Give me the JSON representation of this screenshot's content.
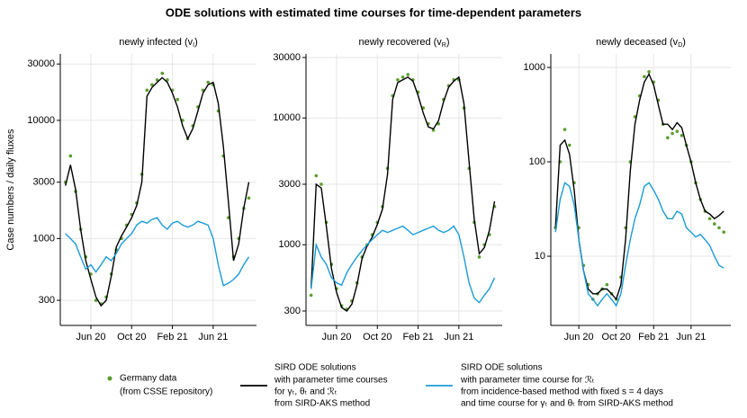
{
  "title": "ODE solutions with estimated time courses for time-dependent parameters",
  "y_label": "Case numbers / daily fluxes",
  "legend": [
    {
      "lines": [
        "Germany data",
        "(from CSSE repository)"
      ]
    },
    {
      "lines": [
        "SIRD ODE solutions",
        "with parameter time courses",
        "for γₜ, θₜ and ℛₜ",
        "from SIRD-AKS method"
      ]
    },
    {
      "lines": [
        "SIRD ODE solutions",
        "with parameter time course for ℛₜ",
        "from incidence-based method with fixed s = 4 days",
        "and time course for γₜ and θₜ from SIRD-AKS method"
      ]
    }
  ],
  "chart_data": [
    {
      "type": "line",
      "title_main": "newly infected (v",
      "title_sub": "I",
      "title_end": ")",
      "yscale": "log",
      "grid": true,
      "categories": [
        null,
        null,
        null,
        null,
        null,
        "Jun 20",
        null,
        null,
        null,
        null,
        null,
        null,
        null,
        "Oct 20",
        null,
        null,
        null,
        null,
        null,
        null,
        null,
        "Feb 21",
        null,
        null,
        null,
        null,
        null,
        null,
        null,
        "Jun 21",
        null,
        null,
        null,
        null,
        null,
        null,
        null
      ],
      "ylim": [
        184,
        36500
      ],
      "yticks": [
        300,
        1000,
        3000,
        10000,
        30000
      ],
      "series": [
        {
          "marker": "dot",
          "color": "#5a9e2e",
          "values": [
            3000,
            5000,
            2500,
            1200,
            700,
            500,
            300,
            280,
            320,
            500,
            800,
            1000,
            1300,
            1600,
            2000,
            3500,
            18000,
            20000,
            22000,
            25000,
            22000,
            18000,
            15000,
            10000,
            7000,
            9000,
            13000,
            18000,
            21000,
            20000,
            12000,
            5000,
            1500,
            700,
            1000,
            1800,
            2200
          ]
        },
        {
          "marker": "line",
          "color": "#000000",
          "values": [
            2800,
            4200,
            2600,
            1200,
            650,
            450,
            320,
            270,
            300,
            480,
            850,
            1050,
            1250,
            1500,
            1900,
            3000,
            16000,
            19000,
            21000,
            23000,
            21000,
            17000,
            13000,
            9000,
            7000,
            8500,
            12000,
            17000,
            20000,
            21000,
            14000,
            6000,
            2000,
            650,
            900,
            1800,
            3000
          ]
        },
        {
          "marker": "line",
          "color": "#1a9bd7",
          "values": [
            1100,
            1000,
            900,
            700,
            550,
            600,
            520,
            600,
            700,
            650,
            750,
            900,
            1000,
            1100,
            1300,
            1400,
            1350,
            1450,
            1500,
            1300,
            1200,
            1350,
            1400,
            1300,
            1250,
            1300,
            1400,
            1350,
            1300,
            1000,
            600,
            400,
            420,
            450,
            500,
            600,
            700
          ]
        }
      ]
    },
    {
      "type": "line",
      "title_main": "newly recovered (v",
      "title_sub": "R",
      "title_end": ")",
      "yscale": "log",
      "grid": true,
      "categories": [
        null,
        null,
        null,
        null,
        null,
        "Jun 20",
        null,
        null,
        null,
        null,
        null,
        null,
        null,
        "Oct 20",
        null,
        null,
        null,
        null,
        null,
        null,
        null,
        "Feb 21",
        null,
        null,
        null,
        null,
        null,
        null,
        null,
        "Jun 21",
        null,
        null,
        null,
        null,
        null,
        null,
        null
      ],
      "ylim": [
        231,
        32000
      ],
      "yticks": [
        300,
        1000,
        3000,
        10000,
        30000
      ],
      "series": [
        {
          "marker": "dot",
          "color": "#5a9e2e",
          "values": [
            400,
            3500,
            3000,
            1500,
            700,
            450,
            330,
            310,
            360,
            500,
            800,
            1000,
            1200,
            1500,
            2000,
            4000,
            15000,
            20000,
            21000,
            22000,
            20000,
            16000,
            12000,
            9000,
            8000,
            9000,
            14000,
            18000,
            20000,
            20000,
            12000,
            4000,
            1500,
            800,
            1000,
            1200,
            2000
          ]
        },
        {
          "marker": "line",
          "color": "#000000",
          "values": [
            450,
            3000,
            2800,
            1400,
            650,
            420,
            320,
            300,
            340,
            480,
            780,
            980,
            1150,
            1450,
            1900,
            3600,
            14000,
            19000,
            20000,
            21000,
            19500,
            15000,
            11000,
            8500,
            8200,
            9500,
            13500,
            17500,
            19500,
            21000,
            13000,
            4500,
            1600,
            850,
            950,
            1300,
            2200
          ]
        },
        {
          "marker": "line",
          "color": "#1a9bd7",
          "values": [
            450,
            1000,
            800,
            700,
            550,
            500,
            480,
            600,
            700,
            800,
            900,
            1000,
            1100,
            1200,
            1300,
            1250,
            1300,
            1350,
            1400,
            1300,
            1200,
            1250,
            1300,
            1350,
            1400,
            1300,
            1250,
            1300,
            1400,
            1200,
            800,
            500,
            380,
            350,
            400,
            450,
            550
          ]
        }
      ]
    },
    {
      "type": "line",
      "title_main": "newly deceased (v",
      "title_sub": "D",
      "title_end": ")",
      "yscale": "log",
      "grid": true,
      "categories": [
        null,
        null,
        null,
        null,
        null,
        "Jun 20",
        null,
        null,
        null,
        null,
        null,
        null,
        null,
        "Oct 20",
        null,
        null,
        null,
        null,
        null,
        null,
        null,
        "Feb 21",
        null,
        null,
        null,
        null,
        null,
        null,
        null,
        "Jun 21",
        null,
        null,
        null,
        null,
        null,
        null,
        null
      ],
      "ylim": [
        1.85,
        1390
      ],
      "yticks": [
        10,
        100,
        1000
      ],
      "series": [
        {
          "marker": "dot",
          "color": "#5a9e2e",
          "values": [
            20,
            100,
            220,
            150,
            60,
            20,
            8,
            5,
            3.5,
            4,
            4.5,
            5,
            4,
            3.5,
            6,
            20,
            100,
            300,
            500,
            800,
            900,
            700,
            450,
            250,
            180,
            200,
            210,
            190,
            150,
            100,
            60,
            40,
            30,
            25,
            22,
            20,
            18
          ]
        },
        {
          "marker": "line",
          "color": "#000000",
          "values": [
            20,
            150,
            170,
            120,
            50,
            15,
            7,
            4.5,
            4,
            4,
            4.5,
            4.5,
            4,
            3.5,
            5,
            15,
            80,
            250,
            450,
            700,
            850,
            650,
            400,
            250,
            250,
            220,
            260,
            230,
            150,
            100,
            60,
            40,
            30,
            28,
            25,
            27,
            30
          ]
        },
        {
          "marker": "line",
          "color": "#1a9bd7",
          "values": [
            18,
            40,
            60,
            55,
            35,
            15,
            7,
            4,
            3.5,
            3,
            3.5,
            4,
            3.5,
            3,
            4,
            8,
            15,
            25,
            35,
            55,
            60,
            50,
            40,
            30,
            25,
            25,
            30,
            28,
            20,
            18,
            16,
            17,
            15,
            13,
            10,
            8,
            7.5
          ]
        }
      ]
    }
  ]
}
